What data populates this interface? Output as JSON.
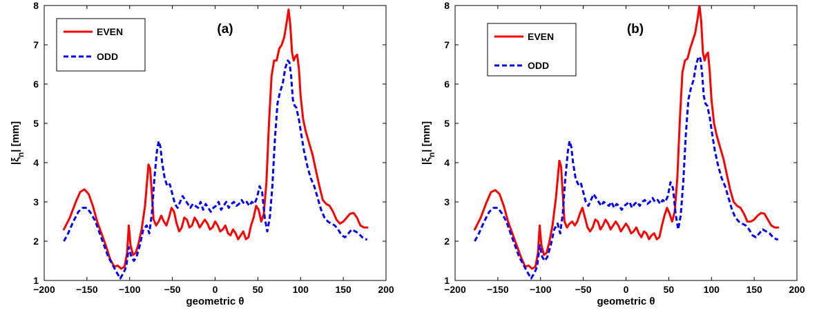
{
  "chart_data": [
    {
      "type": "line",
      "title": "(a)",
      "xlabel": "geometric θ",
      "ylabel": "|ξn| [mm]",
      "xlim": [
        -200,
        200
      ],
      "ylim": [
        1,
        8
      ],
      "xticks": [
        -200,
        -150,
        -100,
        -50,
        0,
        50,
        100,
        150,
        200
      ],
      "yticks": [
        1,
        2,
        3,
        4,
        5,
        6,
        7,
        8
      ],
      "grid": false,
      "legend_position": "top-left",
      "series": [
        {
          "name": "EVEN",
          "color": "#ff0000",
          "style": "solid",
          "x": [
            -177,
            -170,
            -163,
            -158,
            -153,
            -148,
            -143,
            -138,
            -133,
            -128,
            -123,
            -118,
            -114,
            -110,
            -106,
            -103,
            -101,
            -99,
            -96,
            -93,
            -90,
            -86,
            -82,
            -78,
            -76,
            -74,
            -72,
            -69,
            -66,
            -63,
            -60,
            -57,
            -54,
            -51,
            -48,
            -45,
            -42,
            -39,
            -36,
            -33,
            -30,
            -27,
            -24,
            -21,
            -18,
            -15,
            -12,
            -9,
            -6,
            -3,
            0,
            3,
            6,
            9,
            12,
            15,
            18,
            21,
            24,
            27,
            30,
            33,
            36,
            39,
            42,
            45,
            48,
            51,
            54,
            57,
            60,
            63,
            66,
            69,
            72,
            75,
            78,
            81,
            84,
            86,
            88,
            90,
            92,
            94,
            96,
            98,
            100,
            103,
            106,
            110,
            114,
            118,
            122,
            126,
            130,
            134,
            138,
            142,
            146,
            150,
            154,
            158,
            162,
            166,
            170,
            174,
            178
          ],
          "values": [
            2.3,
            2.6,
            3.0,
            3.25,
            3.32,
            3.2,
            2.9,
            2.5,
            2.2,
            1.9,
            1.55,
            1.35,
            1.38,
            1.3,
            1.35,
            1.7,
            2.4,
            1.9,
            1.65,
            1.7,
            1.9,
            2.3,
            2.9,
            3.95,
            3.85,
            3.2,
            2.55,
            2.4,
            2.5,
            2.65,
            2.5,
            2.4,
            2.6,
            2.85,
            2.75,
            2.45,
            2.25,
            2.35,
            2.6,
            2.55,
            2.35,
            2.4,
            2.6,
            2.5,
            2.35,
            2.45,
            2.55,
            2.45,
            2.3,
            2.35,
            2.5,
            2.4,
            2.25,
            2.3,
            2.4,
            2.2,
            2.15,
            2.3,
            2.2,
            2.05,
            2.15,
            2.25,
            2.05,
            2.1,
            2.4,
            2.6,
            2.9,
            2.8,
            2.5,
            2.7,
            3.5,
            5.0,
            6.2,
            6.6,
            6.6,
            6.9,
            7.0,
            7.2,
            7.6,
            7.9,
            7.5,
            6.8,
            6.6,
            6.7,
            6.75,
            6.4,
            5.7,
            5.1,
            4.8,
            4.5,
            4.2,
            3.8,
            3.4,
            3.05,
            2.95,
            2.9,
            2.75,
            2.55,
            2.45,
            2.5,
            2.6,
            2.7,
            2.72,
            2.6,
            2.4,
            2.35,
            2.35
          ]
        },
        {
          "name": "ODD",
          "color": "#0000ff",
          "style": "dashed",
          "x": [
            -177,
            -172,
            -166,
            -160,
            -155,
            -150,
            -145,
            -140,
            -135,
            -130,
            -125,
            -120,
            -115,
            -111,
            -107,
            -104,
            -101,
            -98,
            -95,
            -92,
            -88,
            -84,
            -80,
            -77,
            -74,
            -71,
            -68,
            -66,
            -64,
            -62,
            -59,
            -56,
            -53,
            -50,
            -47,
            -44,
            -41,
            -38,
            -35,
            -32,
            -29,
            -26,
            -23,
            -20,
            -17,
            -14,
            -11,
            -8,
            -5,
            -2,
            1,
            4,
            7,
            10,
            13,
            16,
            19,
            22,
            25,
            28,
            31,
            34,
            37,
            40,
            43,
            46,
            49,
            52,
            55,
            58,
            61,
            64,
            67,
            70,
            73,
            76,
            79,
            82,
            85,
            87,
            89,
            91,
            93,
            95,
            98,
            101,
            104,
            108,
            112,
            116,
            120,
            124,
            128,
            132,
            136,
            140,
            144,
            148,
            152,
            156,
            160,
            164,
            168,
            172,
            176,
            178
          ],
          "values": [
            2.0,
            2.2,
            2.5,
            2.75,
            2.85,
            2.85,
            2.7,
            2.5,
            2.2,
            1.9,
            1.6,
            1.4,
            1.2,
            1.05,
            1.2,
            1.35,
            1.85,
            1.6,
            1.5,
            1.6,
            1.9,
            2.3,
            2.4,
            2.2,
            2.7,
            3.6,
            4.3,
            4.55,
            4.4,
            4.0,
            3.6,
            3.4,
            3.45,
            3.2,
            2.95,
            2.85,
            3.0,
            3.15,
            3.05,
            2.95,
            2.85,
            2.95,
            2.9,
            2.85,
            3.0,
            2.8,
            2.95,
            2.85,
            2.75,
            2.85,
            2.9,
            3.0,
            2.8,
            2.9,
            3.0,
            2.85,
            2.95,
            3.0,
            2.9,
            2.95,
            3.05,
            2.95,
            3.0,
            2.9,
            3.0,
            2.95,
            3.1,
            3.4,
            3.25,
            2.6,
            2.25,
            2.6,
            3.4,
            4.6,
            5.5,
            5.8,
            6.0,
            6.4,
            6.6,
            6.55,
            6.2,
            5.6,
            5.45,
            5.4,
            5.1,
            4.7,
            4.3,
            3.9,
            3.6,
            3.4,
            3.1,
            2.8,
            2.6,
            2.5,
            2.45,
            2.4,
            2.3,
            2.15,
            2.1,
            2.2,
            2.3,
            2.25,
            2.2,
            2.1,
            2.05,
            2.05
          ]
        }
      ]
    },
    {
      "type": "line",
      "title": "(b)",
      "xlabel": "geometric θ",
      "ylabel": "|ξn| [mm]",
      "xlim": [
        -200,
        200
      ],
      "ylim": [
        1,
        8
      ],
      "xticks": [
        -200,
        -150,
        -100,
        -50,
        0,
        50,
        100,
        150,
        200
      ],
      "yticks": [
        1,
        2,
        3,
        4,
        5,
        6,
        7,
        8
      ],
      "grid": false,
      "legend_position": "top-left",
      "series": [
        {
          "name": "EVEN",
          "color": "#ff0000",
          "style": "solid",
          "x": [
            -177,
            -170,
            -163,
            -158,
            -153,
            -148,
            -143,
            -138,
            -133,
            -128,
            -123,
            -118,
            -114,
            -110,
            -106,
            -103,
            -101,
            -99,
            -96,
            -93,
            -90,
            -86,
            -82,
            -78,
            -76,
            -74,
            -72,
            -69,
            -66,
            -63,
            -60,
            -57,
            -54,
            -51,
            -48,
            -45,
            -42,
            -39,
            -36,
            -33,
            -30,
            -27,
            -24,
            -21,
            -18,
            -15,
            -12,
            -9,
            -6,
            -3,
            0,
            3,
            6,
            9,
            12,
            15,
            18,
            21,
            24,
            27,
            30,
            33,
            36,
            39,
            42,
            45,
            48,
            51,
            54,
            57,
            60,
            63,
            66,
            69,
            72,
            75,
            78,
            81,
            84,
            86,
            88,
            90,
            92,
            94,
            96,
            98,
            100,
            103,
            106,
            110,
            114,
            118,
            122,
            126,
            130,
            134,
            138,
            142,
            146,
            150,
            154,
            158,
            162,
            166,
            170,
            174,
            178
          ],
          "values": [
            2.3,
            2.6,
            3.0,
            3.25,
            3.3,
            3.2,
            2.9,
            2.5,
            2.2,
            1.9,
            1.6,
            1.35,
            1.38,
            1.3,
            1.35,
            1.7,
            2.4,
            1.9,
            1.65,
            1.7,
            1.95,
            2.4,
            3.1,
            4.05,
            3.9,
            3.2,
            2.5,
            2.35,
            2.45,
            2.5,
            2.4,
            2.5,
            2.7,
            2.85,
            2.6,
            2.35,
            2.25,
            2.35,
            2.55,
            2.5,
            2.3,
            2.4,
            2.55,
            2.45,
            2.3,
            2.4,
            2.5,
            2.4,
            2.25,
            2.35,
            2.45,
            2.35,
            2.2,
            2.25,
            2.35,
            2.2,
            2.1,
            2.25,
            2.2,
            2.05,
            2.15,
            2.2,
            2.05,
            2.1,
            2.4,
            2.65,
            2.85,
            2.7,
            2.5,
            2.75,
            3.6,
            5.1,
            6.3,
            6.6,
            6.65,
            6.9,
            7.1,
            7.3,
            7.7,
            8.0,
            7.6,
            6.8,
            6.6,
            6.75,
            6.8,
            6.3,
            5.6,
            5.0,
            4.7,
            4.4,
            4.1,
            3.7,
            3.3,
            3.0,
            2.9,
            2.85,
            2.7,
            2.5,
            2.5,
            2.55,
            2.65,
            2.72,
            2.7,
            2.55,
            2.4,
            2.35,
            2.35
          ]
        },
        {
          "name": "ODD",
          "color": "#0000ff",
          "style": "dashed",
          "x": [
            -177,
            -172,
            -166,
            -160,
            -155,
            -150,
            -145,
            -140,
            -135,
            -130,
            -125,
            -120,
            -115,
            -111,
            -107,
            -104,
            -101,
            -98,
            -95,
            -92,
            -88,
            -84,
            -80,
            -77,
            -74,
            -71,
            -68,
            -66,
            -64,
            -62,
            -59,
            -56,
            -53,
            -50,
            -47,
            -44,
            -41,
            -38,
            -35,
            -32,
            -29,
            -26,
            -23,
            -20,
            -17,
            -14,
            -11,
            -8,
            -5,
            -2,
            1,
            4,
            7,
            10,
            13,
            16,
            19,
            22,
            25,
            28,
            31,
            34,
            37,
            40,
            43,
            46,
            49,
            52,
            55,
            58,
            61,
            64,
            67,
            70,
            73,
            76,
            79,
            82,
            85,
            87,
            89,
            91,
            93,
            95,
            98,
            101,
            104,
            108,
            112,
            116,
            120,
            124,
            128,
            132,
            136,
            140,
            144,
            148,
            152,
            156,
            160,
            164,
            168,
            172,
            176,
            178
          ],
          "values": [
            2.0,
            2.2,
            2.5,
            2.75,
            2.85,
            2.85,
            2.7,
            2.5,
            2.2,
            1.9,
            1.6,
            1.4,
            1.2,
            1.05,
            1.2,
            1.35,
            1.9,
            1.6,
            1.5,
            1.6,
            1.9,
            2.3,
            2.45,
            2.2,
            2.7,
            3.6,
            4.3,
            4.55,
            4.4,
            4.0,
            3.6,
            3.45,
            3.5,
            3.25,
            3.0,
            2.9,
            3.05,
            3.2,
            3.1,
            3.0,
            2.9,
            3.0,
            2.95,
            2.9,
            3.0,
            2.85,
            2.95,
            2.9,
            2.8,
            2.9,
            2.95,
            3.0,
            2.85,
            2.95,
            3.0,
            2.9,
            3.0,
            3.05,
            2.95,
            3.0,
            3.1,
            3.0,
            3.05,
            2.95,
            3.05,
            3.0,
            3.15,
            3.5,
            3.35,
            2.7,
            2.3,
            2.65,
            3.5,
            4.7,
            5.6,
            5.9,
            6.1,
            6.5,
            6.7,
            6.65,
            6.3,
            5.7,
            5.5,
            5.45,
            5.15,
            4.7,
            4.3,
            3.9,
            3.6,
            3.4,
            3.1,
            2.8,
            2.6,
            2.5,
            2.45,
            2.4,
            2.3,
            2.15,
            2.1,
            2.2,
            2.3,
            2.25,
            2.2,
            2.1,
            2.05,
            2.05
          ]
        }
      ]
    }
  ]
}
